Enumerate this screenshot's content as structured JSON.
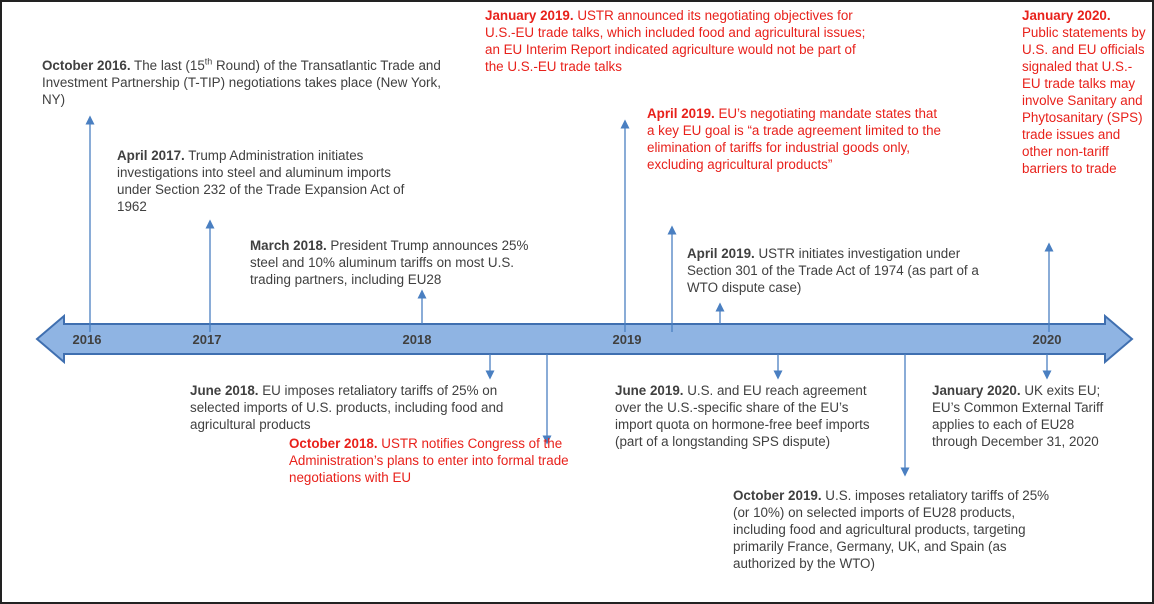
{
  "years": [
    "2016",
    "2017",
    "2018",
    "2019",
    "2020"
  ],
  "events": [
    {
      "date": "October 2016.",
      "text": " The last (15",
      "sup": "th",
      "text2": " Round) of the Transatlantic Trade and Investment Partnership (T-TIP) negotiations takes place (New York, NY)",
      "color": "#404040"
    },
    {
      "date": "April 2017.",
      "text": " Trump Administration initiates investigations into steel and aluminum imports under Section 232 of the Trade Expansion Act of 1962",
      "color": "#404040"
    },
    {
      "date": "March 2018.",
      "text": " President Trump announces 25% steel and 10% aluminum tariffs on most U.S. trading partners, including EU28",
      "color": "#404040"
    },
    {
      "date": "January 2019.",
      "text": " USTR announced its negotiating objectives for U.S.-EU trade talks, which included food and agricultural issues; an EU Interim Report indicated agriculture would not be part of the U.S.-EU trade talks",
      "color": "#e8211b"
    },
    {
      "date": "April 2019.",
      "text": " EU’s negotiating mandate states that a key EU goal is “a trade agreement limited to the elimination of tariffs for industrial goods only, excluding agricultural products”",
      "color": "#e8211b"
    },
    {
      "date": "April 2019.",
      "text": " USTR initiates investigation under Section 301 of the Trade Act of 1974 (as part of a WTO dispute case)",
      "color": "#404040"
    },
    {
      "date": "January 2020.",
      "text": " Public statements by U.S. and EU officials signaled that U.S.-EU trade talks may involve Sanitary and Phytosanitary (SPS) trade issues and other non-tariff barriers to trade",
      "color": "#e8211b"
    },
    {
      "date": "June 2018.",
      "text": " EU imposes retaliatory tariffs of 25% on selected imports of U.S. products, including food and agricultural products",
      "color": "#404040"
    },
    {
      "date": "October 2018.",
      "text": " USTR notifies Congress of the Administration’s plans to enter into formal trade negotiations with EU",
      "color": "#e8211b"
    },
    {
      "date": "June 2019.",
      "text": " U.S. and EU reach agreement over the U.S.-specific share of the EU’s import quota on hormone-free beef imports (part of a longstanding SPS dispute)",
      "color": "#404040"
    },
    {
      "date": "January 2020.",
      "text": " UK exits EU; EU’s Common External Tariff applies to each of EU28 through December 31, 2020",
      "color": "#404040"
    },
    {
      "date": "October 2019.",
      "text": " U.S. imposes retaliatory tariffs of 25% (or 10%) on selected imports of EU28 products, including food and agricultural products, targeting primarily France, Germany, UK, and Spain (as authorized by the WTO)",
      "color": "#404040"
    }
  ]
}
